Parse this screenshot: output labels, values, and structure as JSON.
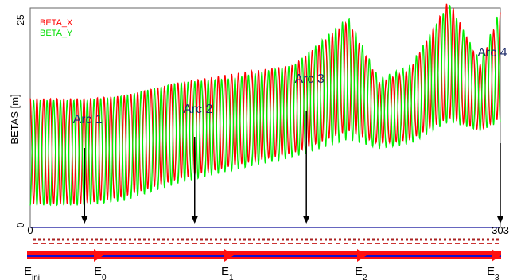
{
  "chart_data": {
    "type": "line",
    "ylabel": "BETAS [m]",
    "ylim": [
      0,
      25
    ],
    "y_ticks": [
      "25",
      "0"
    ],
    "xlim": [
      0,
      303
    ],
    "x_ticks": [
      "0",
      "303"
    ],
    "grid": false,
    "legend": {
      "placement": "top-left",
      "entries": [
        {
          "label": "BETA_X",
          "color": "#ff0000"
        },
        {
          "label": "BETA_Y",
          "color": "#00ee00"
        }
      ]
    },
    "series": [
      {
        "name": "BETA_X",
        "color": "#ff0000",
        "oscillations": 70,
        "upper_envelope_x": [
          0,
          35,
          60,
          95,
          130,
          170,
          205,
          225,
          245,
          270,
          290,
          303
        ],
        "upper_envelope_y": [
          14.7,
          14.7,
          15.0,
          16.5,
          17.5,
          18.5,
          23.5,
          16.5,
          18.0,
          26.0,
          18.5,
          24.5
        ],
        "lower_envelope_x": [
          0,
          35,
          60,
          95,
          130,
          170,
          205,
          225,
          245,
          270,
          290,
          303
        ],
        "lower_envelope_y": [
          2.7,
          2.7,
          3.5,
          5.5,
          7.0,
          8.5,
          11.0,
          9.5,
          10.0,
          12.5,
          11.0,
          12.5
        ]
      },
      {
        "name": "BETA_Y",
        "color": "#00ee00",
        "oscillations": 70,
        "upper_envelope_x": [
          0,
          35,
          60,
          95,
          130,
          170,
          205,
          225,
          245,
          270,
          290,
          303
        ],
        "upper_envelope_y": [
          14.5,
          14.5,
          15.0,
          16.5,
          17.0,
          18.5,
          24.0,
          17.0,
          18.5,
          25.5,
          19.0,
          25.0
        ],
        "lower_envelope_x": [
          0,
          35,
          60,
          95,
          130,
          170,
          205,
          225,
          245,
          270,
          290,
          303
        ],
        "lower_envelope_y": [
          2.5,
          2.5,
          3.0,
          5.0,
          6.5,
          8.0,
          10.0,
          9.0,
          9.5,
          12.0,
          11.0,
          12.0
        ]
      }
    ],
    "annotations": [
      {
        "label": "Arc 1",
        "x": 35
      },
      {
        "label": "Arc 2",
        "x": 106
      },
      {
        "label": "Arc 3",
        "x": 178
      },
      {
        "label": "Arc 4",
        "x": 303
      }
    ],
    "energy_labels": [
      {
        "main": "E",
        "sub": "inj"
      },
      {
        "main": "E",
        "sub": "0"
      },
      {
        "main": "E",
        "sub": "1"
      },
      {
        "main": "E",
        "sub": "2"
      },
      {
        "main": "E",
        "sub": "3"
      }
    ]
  }
}
